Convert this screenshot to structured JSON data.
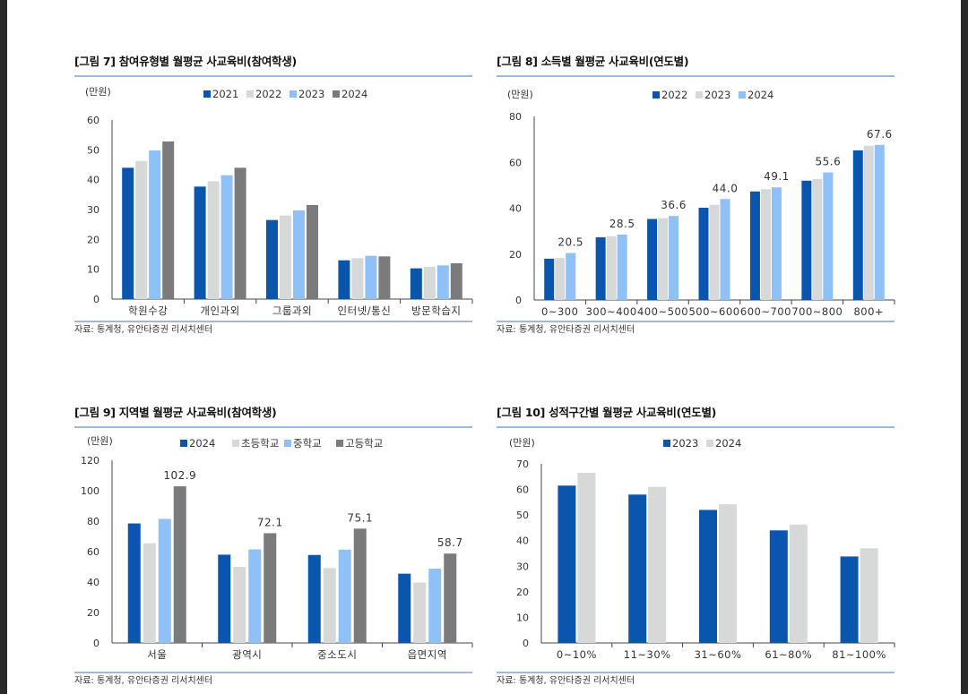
{
  "colors": {
    "2021": "#0a55ad",
    "2022": "#d6d9d8",
    "2023": "#8fc1f6",
    "2024": "#7b7b7d",
    "elem": "#d6d9d8",
    "mid": "#8fc1f6",
    "high": "#7b7b7d"
  },
  "source_text": "자료: 통계청, 유안타증권 리서치센터",
  "charts": [
    {
      "title": "[그림 7] 참여유형별 월평균 사교육비(참여학생)",
      "chart_data": {
        "type": "bar",
        "unit": "(만원)",
        "ylim": [
          0,
          60
        ],
        "yticks": [
          0,
          10,
          20,
          30,
          40,
          50,
          60
        ],
        "legend": "top",
        "grid": false,
        "categories": [
          "학원수강",
          "개인과외",
          "그룹과외",
          "인터넷/통신",
          "방문학습지"
        ],
        "series": [
          {
            "name": "2021",
            "color": "2021",
            "values": [
              44.0,
              37.7,
              26.5,
              13.0,
              10.3
            ]
          },
          {
            "name": "2022",
            "color": "2022",
            "values": [
              46.3,
              39.5,
              28.0,
              13.7,
              10.8
            ]
          },
          {
            "name": "2023",
            "color": "2023",
            "values": [
              49.8,
              41.5,
              29.7,
              14.5,
              11.3
            ]
          },
          {
            "name": "2024",
            "color": "2024",
            "values": [
              52.8,
              44.0,
              31.5,
              14.3,
              12.0
            ]
          }
        ],
        "labels": []
      }
    },
    {
      "title": "[그림 8] 소득별 월평균 사교육비(연도별)",
      "chart_data": {
        "type": "bar",
        "unit": "(만원)",
        "ylim": [
          0,
          80
        ],
        "yticks": [
          0,
          20,
          40,
          60,
          80
        ],
        "legend": "top",
        "grid": false,
        "categories": [
          "0~300",
          "300~400",
          "400~500",
          "500~600",
          "600~700",
          "700~800",
          "800+"
        ],
        "series": [
          {
            "name": "2022",
            "color": "2021",
            "values": [
              18.0,
              27.3,
              35.3,
              40.2,
              47.3,
              52.0,
              65.2
            ]
          },
          {
            "name": "2023",
            "color": "2022",
            "values": [
              18.3,
              27.8,
              35.7,
              41.5,
              48.3,
              52.7,
              67.2
            ]
          },
          {
            "name": "2024",
            "color": "2023",
            "values": [
              20.5,
              28.5,
              36.6,
              44.0,
              49.1,
              55.6,
              67.6
            ]
          }
        ],
        "labels": [
          "20.5",
          "28.5",
          "36.6",
          "44.0",
          "49.1",
          "55.6",
          "67.6"
        ]
      }
    },
    {
      "title": "[그림 9] 지역별 월평균 사교육비(참여학생)",
      "chart_data": {
        "type": "bar",
        "unit": "(만원)",
        "ylim": [
          0,
          120
        ],
        "yticks": [
          0,
          20,
          40,
          60,
          80,
          100,
          120
        ],
        "legend": "top",
        "grid": false,
        "categories": [
          "서울",
          "광역시",
          "중소도시",
          "읍면지역"
        ],
        "series": [
          {
            "name": "2024",
            "color": "2021",
            "values": [
              78.5,
              58.0,
              57.8,
              45.5
            ]
          },
          {
            "name": "초등학교",
            "color": "elem",
            "values": [
              65.5,
              50.0,
              49.2,
              39.7
            ]
          },
          {
            "name": "중학교",
            "color": "mid",
            "values": [
              81.5,
              61.5,
              61.3,
              48.8
            ]
          },
          {
            "name": "고등학교",
            "color": "high",
            "values": [
              102.9,
              72.1,
              75.1,
              58.7
            ]
          }
        ],
        "labels": [
          "102.9",
          "72.1",
          "75.1",
          "58.7"
        ]
      }
    },
    {
      "title": "[그림 10] 성적구간별 월평균 사교육비(연도별)",
      "chart_data": {
        "type": "bar",
        "unit": "(만원)",
        "ylim": [
          0,
          70
        ],
        "yticks": [
          0,
          10,
          20,
          30,
          40,
          50,
          60,
          70
        ],
        "legend": "top",
        "grid": false,
        "categories": [
          "0~10%",
          "11~30%",
          "31~60%",
          "61~80%",
          "81~100%"
        ],
        "series": [
          {
            "name": "2023",
            "color": "2021",
            "values": [
              61.5,
              58.0,
              52.0,
              44.0,
              33.8
            ]
          },
          {
            "name": "2024",
            "color": "2022",
            "values": [
              66.5,
              61.0,
              54.2,
              46.3,
              37.0
            ]
          }
        ],
        "labels": []
      }
    }
  ]
}
